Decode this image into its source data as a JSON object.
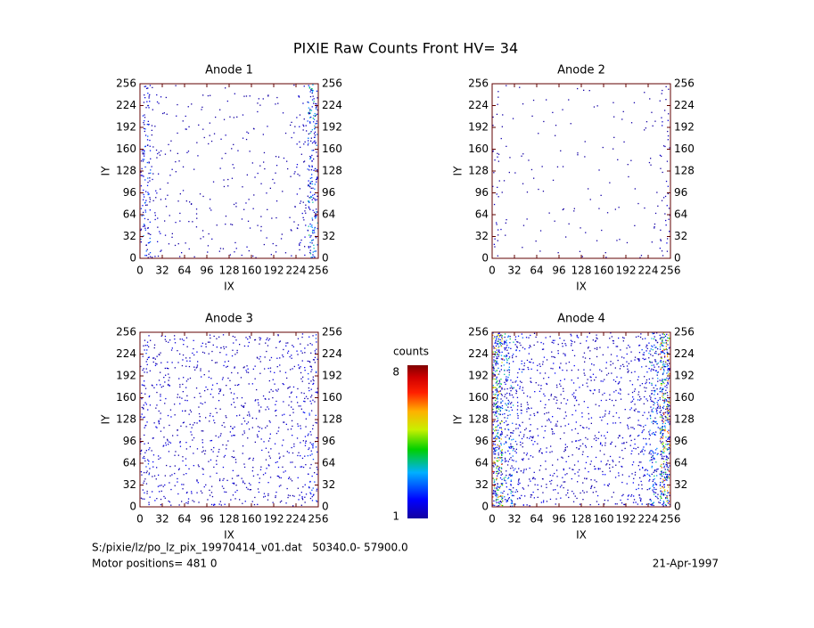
{
  "title": "PIXIE Raw Counts Front HV= 34",
  "chart_data": [
    {
      "type": "heatmap",
      "title": "Anode 1",
      "x_label": "IX",
      "y_label": "IY",
      "xlim": [
        0,
        256
      ],
      "ylim": [
        0,
        256
      ],
      "xticks": [
        0,
        32,
        64,
        96,
        128,
        160,
        192,
        224,
        256
      ],
      "yticks": [
        0,
        32,
        64,
        96,
        128,
        160,
        192,
        224,
        256
      ],
      "z": [
        [
          0.9,
          0.3,
          0.15,
          0.15,
          0.12,
          0.12,
          0.12,
          0.12,
          0.15,
          0.15,
          0.15,
          0.12,
          0.12,
          0.15,
          0.35,
          1.3
        ],
        [
          0.9,
          0.25,
          0.12,
          0.12,
          0.1,
          0.1,
          0.1,
          0.1,
          0.1,
          0.12,
          0.12,
          0.1,
          0.1,
          0.12,
          0.3,
          1.3
        ],
        [
          0.8,
          0.25,
          0.12,
          0.12,
          0.12,
          0.1,
          0.1,
          0.12,
          0.12,
          0.12,
          0.1,
          0.1,
          0.1,
          0.12,
          0.3,
          1.2
        ],
        [
          0.7,
          0.2,
          0.1,
          0.1,
          0.1,
          0.1,
          0.1,
          0.1,
          0.1,
          0.1,
          0.1,
          0.1,
          0.1,
          0.1,
          0.3,
          1.4
        ]
      ]
    },
    {
      "type": "heatmap",
      "title": "Anode 2",
      "x_label": "IX",
      "y_label": "IY",
      "xlim": [
        0,
        256
      ],
      "ylim": [
        0,
        256
      ],
      "xticks": [
        0,
        32,
        64,
        96,
        128,
        160,
        192,
        224,
        256
      ],
      "yticks": [
        0,
        32,
        64,
        96,
        128,
        160,
        192,
        224,
        256
      ],
      "z": [
        [
          0.25,
          0.08,
          0.06,
          0.05,
          0.05,
          0.05,
          0.06,
          0.05,
          0.05,
          0.06,
          0.05,
          0.05,
          0.05,
          0.06,
          0.1,
          0.35
        ],
        [
          0.2,
          0.06,
          0.05,
          0.05,
          0.05,
          0.05,
          0.05,
          0.05,
          0.05,
          0.05,
          0.05,
          0.05,
          0.05,
          0.05,
          0.08,
          0.25
        ],
        [
          0.2,
          0.06,
          0.05,
          0.05,
          0.05,
          0.05,
          0.05,
          0.05,
          0.05,
          0.05,
          0.05,
          0.05,
          0.05,
          0.05,
          0.08,
          0.25
        ],
        [
          0.2,
          0.06,
          0.05,
          0.05,
          0.05,
          0.05,
          0.05,
          0.05,
          0.05,
          0.05,
          0.05,
          0.05,
          0.05,
          0.05,
          0.1,
          0.3
        ]
      ]
    },
    {
      "type": "heatmap",
      "title": "Anode 3",
      "x_label": "IX",
      "y_label": "IY",
      "xlim": [
        0,
        256
      ],
      "ylim": [
        0,
        256
      ],
      "xticks": [
        0,
        32,
        64,
        96,
        128,
        160,
        192,
        224,
        256
      ],
      "yticks": [
        0,
        32,
        64,
        96,
        128,
        160,
        192,
        224,
        256
      ],
      "z": [
        [
          0.6,
          0.4,
          0.35,
          0.35,
          0.35,
          0.35,
          0.35,
          0.35,
          0.35,
          0.35,
          0.35,
          0.35,
          0.35,
          0.35,
          0.45,
          0.7
        ],
        [
          0.55,
          0.4,
          0.35,
          0.35,
          0.35,
          0.33,
          0.33,
          0.35,
          0.35,
          0.33,
          0.33,
          0.35,
          0.35,
          0.35,
          0.45,
          0.65
        ],
        [
          0.55,
          0.4,
          0.35,
          0.35,
          0.33,
          0.33,
          0.33,
          0.35,
          0.35,
          0.33,
          0.33,
          0.33,
          0.35,
          0.35,
          0.45,
          0.65
        ],
        [
          0.6,
          0.4,
          0.35,
          0.35,
          0.35,
          0.35,
          0.35,
          0.35,
          0.35,
          0.35,
          0.35,
          0.35,
          0.35,
          0.35,
          0.45,
          0.7
        ]
      ]
    },
    {
      "type": "heatmap",
      "title": "Anode 4",
      "x_label": "IX",
      "y_label": "IY",
      "xlim": [
        0,
        256
      ],
      "ylim": [
        0,
        256
      ],
      "xticks": [
        0,
        32,
        64,
        96,
        128,
        160,
        192,
        224,
        256
      ],
      "yticks": [
        0,
        32,
        64,
        96,
        128,
        160,
        192,
        224,
        256
      ],
      "z": [
        [
          2.6,
          1.3,
          0.7,
          0.45,
          0.4,
          0.4,
          0.4,
          0.4,
          0.4,
          0.4,
          0.4,
          0.4,
          0.45,
          0.7,
          1.3,
          2.8
        ],
        [
          2.5,
          1.2,
          0.65,
          0.45,
          0.4,
          0.38,
          0.38,
          0.4,
          0.4,
          0.38,
          0.38,
          0.4,
          0.45,
          0.65,
          1.2,
          2.7
        ],
        [
          2.5,
          1.2,
          0.65,
          0.45,
          0.4,
          0.38,
          0.38,
          0.4,
          0.4,
          0.38,
          0.38,
          0.4,
          0.45,
          0.65,
          1.2,
          2.7
        ],
        [
          2.6,
          1.3,
          0.7,
          0.45,
          0.4,
          0.4,
          0.4,
          0.4,
          0.4,
          0.4,
          0.4,
          0.4,
          0.45,
          0.7,
          1.3,
          2.8
        ]
      ]
    },
    {
      "type": "colorbar",
      "title": "counts",
      "zlim": [
        1,
        8
      ],
      "zticks": [
        8,
        1
      ]
    }
  ],
  "footer": {
    "file": "S:/pixie/lz/po_lz_pix_19970414_v01.dat   50340.0- 57900.0",
    "motor": "Motor positions= 481 0",
    "date": "21-Apr-1997"
  }
}
